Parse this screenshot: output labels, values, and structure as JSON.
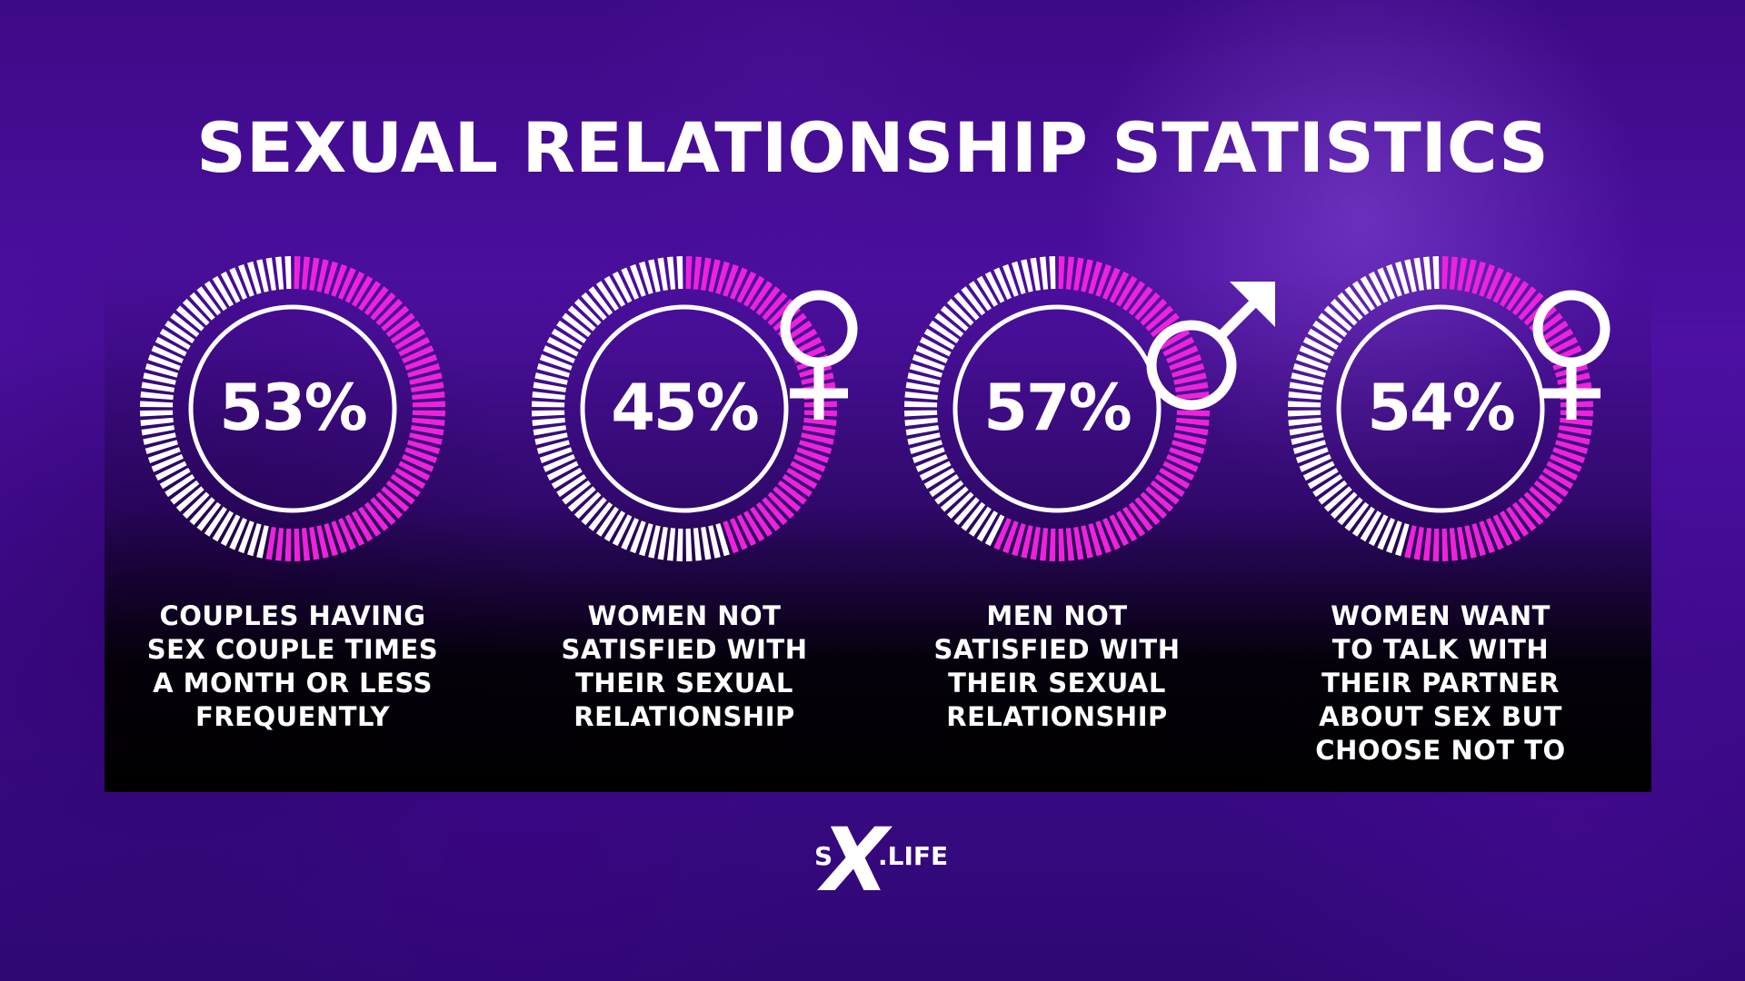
{
  "title": "SEXUAL RELATIONSHIP STATISTICS",
  "colors": {
    "accent": "#ee22dd",
    "ring_inactive": "#ffffff",
    "text": "#ffffff",
    "background": "#45109a"
  },
  "chart_data": [
    {
      "type": "pie",
      "value": 53,
      "label": "53%",
      "icon": "",
      "caption": [
        "COUPLES HAVING",
        "SEX COUPLE TIMES",
        "A MONTH OR LESS",
        "FREQUENTLY"
      ]
    },
    {
      "type": "pie",
      "value": 45,
      "label": "45%",
      "icon": "female-symbol-icon",
      "caption": [
        "WOMEN NOT",
        "SATISFIED WITH",
        "THEIR SEXUAL",
        "RELATIONSHIP"
      ]
    },
    {
      "type": "pie",
      "value": 57,
      "label": "57%",
      "icon": "male-symbol-icon",
      "caption": [
        "MEN NOT",
        "SATISFIED WITH",
        "THEIR SEXUAL",
        "RELATIONSHIP"
      ]
    },
    {
      "type": "pie",
      "value": 54,
      "label": "54%",
      "icon": "female-symbol-icon",
      "caption": [
        "WOMEN WANT",
        "TO TALK WITH",
        "THEIR PARTNER",
        "ABOUT SEX BUT",
        "CHOOSE NOT TO"
      ]
    }
  ],
  "logo": {
    "left": "S",
    "mark": "X",
    "right": ".LIFE"
  }
}
